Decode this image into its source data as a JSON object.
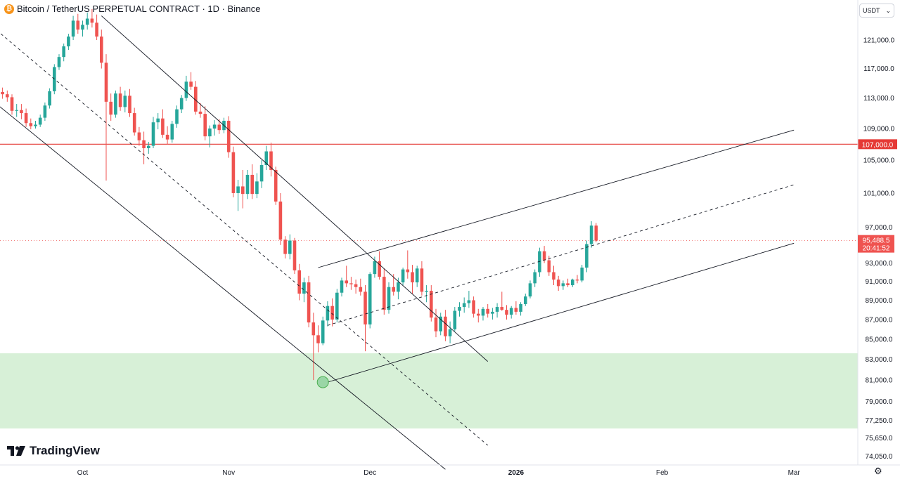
{
  "header": {
    "symbol": "Bitcoin / TetherUS PERPETUAL CONTRACT · 1D · Binance",
    "coin_icon": "bitcoin-icon"
  },
  "currency": {
    "label": "USDT",
    "icon": "chevron-down-icon"
  },
  "logo": {
    "text": "TradingView",
    "icon": "tradingview-logo-icon"
  },
  "settings_icon": "gear-icon",
  "colors": {
    "up": "#26a69a",
    "down": "#ef5350",
    "resistance": "#e53935",
    "zone": "#d7f0d7",
    "line": "#131722"
  },
  "chart_data": {
    "type": "candlestick",
    "symbol": "BTCUSDT.P",
    "interval": "1D",
    "exchange": "Binance",
    "y_scale": "log",
    "x_tick_labels": [
      "Oct",
      "Nov",
      "Dec",
      "2026",
      "Feb",
      "Mar"
    ],
    "x_ticks": [
      {
        "label": "Oct",
        "date": "2025-10-01"
      },
      {
        "label": "Nov",
        "date": "2025-11-01"
      },
      {
        "label": "Dec",
        "date": "2025-12-01"
      },
      {
        "label": "2026",
        "date": "2026-01-01"
      },
      {
        "label": "Feb",
        "date": "2026-02-01"
      },
      {
        "label": "Mar",
        "date": "2026-03-01"
      }
    ],
    "y_tick_labels": [
      "121,000.0",
      "117,000.0",
      "113,000.0",
      "109,000.0",
      "105,000.0",
      "101,000.0",
      "97,000.0",
      "93,000.0",
      "91,000.0",
      "89,000.0",
      "87,000.0",
      "85,000.0",
      "83,000.0",
      "81,000.0",
      "79,000.0",
      "77,250.0",
      "75,650.0",
      "74,050.0"
    ],
    "y_ticks": [
      121000,
      117000,
      113000,
      109000,
      105000,
      101000,
      97000,
      93000,
      91000,
      89000,
      87000,
      85000,
      83000,
      81000,
      79000,
      77250,
      75650,
      74050
    ],
    "first_candle_date": "2025-09-10",
    "candles": [
      [
        113000,
        114500,
        112500,
        113200
      ],
      [
        113200,
        114800,
        112800,
        113500
      ],
      [
        113500,
        115000,
        113000,
        114200
      ],
      [
        114200,
        115200,
        113500,
        113800
      ],
      [
        113800,
        114400,
        112900,
        113500
      ],
      [
        113500,
        114000,
        112500,
        113100
      ],
      [
        113100,
        113500,
        110800,
        111300
      ],
      [
        111300,
        112200,
        110500,
        111400
      ],
      [
        111400,
        112200,
        110200,
        111000
      ],
      [
        111000,
        111600,
        109200,
        109700
      ],
      [
        109700,
        110300,
        108900,
        109300
      ],
      [
        109300,
        110000,
        109000,
        109500
      ],
      [
        109500,
        110800,
        109200,
        110400
      ],
      [
        110400,
        112400,
        110000,
        112000
      ],
      [
        112000,
        114300,
        111600,
        113900
      ],
      [
        113900,
        117600,
        113500,
        117200
      ],
      [
        117200,
        119000,
        116800,
        118600
      ],
      [
        118600,
        120500,
        118000,
        120100
      ],
      [
        120100,
        121900,
        119600,
        121500
      ],
      [
        121500,
        124500,
        121000,
        123800
      ],
      [
        123800,
        124800,
        121900,
        122500
      ],
      [
        122500,
        123800,
        121500,
        123200
      ],
      [
        123200,
        125000,
        122500,
        124100
      ],
      [
        124100,
        125500,
        122800,
        123500
      ],
      [
        123500,
        124700,
        121000,
        121500
      ],
      [
        121500,
        122500,
        117000,
        117800
      ],
      [
        117800,
        119000,
        102500,
        112500
      ],
      [
        112500,
        113600,
        110000,
        110800
      ],
      [
        110800,
        114000,
        110400,
        113600
      ],
      [
        113600,
        114500,
        111300,
        111800
      ],
      [
        111800,
        114000,
        111100,
        113300
      ],
      [
        113300,
        114200,
        110500,
        111000
      ],
      [
        111000,
        111700,
        108100,
        108500
      ],
      [
        108500,
        109200,
        106800,
        107500
      ],
      [
        107500,
        108600,
        104500,
        106500
      ],
      [
        106500,
        107300,
        105800,
        106800
      ],
      [
        106800,
        110500,
        106500,
        109800
      ],
      [
        109800,
        111000,
        108900,
        110300
      ],
      [
        110300,
        111500,
        107800,
        108200
      ],
      [
        108200,
        109300,
        107000,
        107600
      ],
      [
        107600,
        110000,
        107200,
        109600
      ],
      [
        109600,
        112000,
        109100,
        111500
      ],
      [
        111500,
        113400,
        111000,
        113000
      ],
      [
        113000,
        116000,
        112600,
        115200
      ],
      [
        115200,
        116500,
        114100,
        114500
      ],
      [
        114500,
        115300,
        110800,
        111200
      ],
      [
        111200,
        112300,
        110400,
        110900
      ],
      [
        110900,
        111900,
        107500,
        108000
      ],
      [
        108000,
        109400,
        106600,
        109000
      ],
      [
        109000,
        110100,
        108100,
        109500
      ],
      [
        109500,
        110200,
        108300,
        108800
      ],
      [
        108800,
        110400,
        108400,
        110000
      ],
      [
        110000,
        110600,
        105300,
        106000
      ],
      [
        106000,
        106700,
        100500,
        101000
      ],
      [
        101000,
        102600,
        98900,
        101800
      ],
      [
        101800,
        103800,
        99200,
        100900
      ],
      [
        100900,
        103800,
        100300,
        103200
      ],
      [
        103200,
        104500,
        100300,
        100900
      ],
      [
        100900,
        103400,
        100400,
        102400
      ],
      [
        102400,
        105000,
        101600,
        104400
      ],
      [
        104400,
        106800,
        103800,
        106100
      ],
      [
        106100,
        107200,
        103000,
        103800
      ],
      [
        103800,
        104200,
        99600,
        100000
      ],
      [
        100000,
        101000,
        95000,
        95600
      ],
      [
        95600,
        96000,
        93500,
        94000
      ],
      [
        94000,
        96200,
        93400,
        95500
      ],
      [
        95500,
        95800,
        91800,
        92200
      ],
      [
        92200,
        92900,
        89000,
        89700
      ],
      [
        89700,
        91400,
        88800,
        90900
      ],
      [
        90900,
        91600,
        86200,
        86700
      ],
      [
        86700,
        87700,
        81000,
        85400
      ],
      [
        85400,
        86400,
        83700,
        84600
      ],
      [
        84600,
        87300,
        84400,
        86900
      ],
      [
        86900,
        88900,
        86300,
        88400
      ],
      [
        88400,
        89200,
        86300,
        87000
      ],
      [
        87000,
        90200,
        86700,
        89800
      ],
      [
        89800,
        91400,
        89400,
        91100
      ],
      [
        91100,
        92700,
        90400,
        90800
      ],
      [
        90800,
        91500,
        90100,
        90700
      ],
      [
        90700,
        91200,
        89700,
        90400
      ],
      [
        90400,
        91300,
        89500,
        89900
      ],
      [
        89900,
        90600,
        83800,
        86500
      ],
      [
        86500,
        92000,
        86100,
        91800
      ],
      [
        91800,
        93700,
        91400,
        93200
      ],
      [
        93200,
        94300,
        91200,
        91500
      ],
      [
        91500,
        92400,
        87500,
        88000
      ],
      [
        88000,
        90900,
        87600,
        90400
      ],
      [
        90400,
        91800,
        89500,
        89900
      ],
      [
        89900,
        91400,
        89100,
        90900
      ],
      [
        90900,
        92500,
        90600,
        92300
      ],
      [
        92300,
        94400,
        91300,
        92000
      ],
      [
        92000,
        92800,
        89700,
        90900
      ],
      [
        90900,
        92700,
        90400,
        92400
      ],
      [
        92400,
        93200,
        89500,
        89900
      ],
      [
        89900,
        90600,
        88800,
        90000
      ],
      [
        90000,
        90600,
        86800,
        87200
      ],
      [
        87200,
        88100,
        85200,
        85800
      ],
      [
        85800,
        87700,
        85400,
        87300
      ],
      [
        87300,
        88000,
        84800,
        85300
      ],
      [
        85300,
        86800,
        84600,
        86000
      ],
      [
        86000,
        88300,
        85800,
        87900
      ],
      [
        87900,
        88800,
        87300,
        88300
      ],
      [
        88300,
        89300,
        87700,
        88700
      ],
      [
        88700,
        90000,
        88200,
        89000
      ],
      [
        89000,
        89400,
        87200,
        87600
      ],
      [
        87600,
        88100,
        86700,
        87400
      ],
      [
        87400,
        88300,
        86900,
        88100
      ],
      [
        88100,
        88600,
        87200,
        87600
      ],
      [
        87600,
        88200,
        87000,
        87800
      ],
      [
        87800,
        88700,
        87200,
        88300
      ],
      [
        88300,
        89900,
        87900,
        88000
      ],
      [
        88000,
        88500,
        87000,
        87500
      ],
      [
        87500,
        88400,
        87100,
        88200
      ],
      [
        88200,
        88900,
        87500,
        87800
      ],
      [
        87800,
        88800,
        87400,
        88600
      ],
      [
        88600,
        89700,
        88400,
        89400
      ],
      [
        89400,
        91100,
        89200,
        90800
      ],
      [
        90800,
        92300,
        90400,
        92000
      ],
      [
        92000,
        94700,
        91500,
        94300
      ],
      [
        94300,
        94900,
        93000,
        93300
      ],
      [
        93300,
        93800,
        91600,
        92000
      ],
      [
        92000,
        92700,
        90600,
        91200
      ],
      [
        91200,
        91600,
        90000,
        90500
      ],
      [
        90500,
        91100,
        90100,
        90800
      ],
      [
        90800,
        91300,
        90400,
        90600
      ],
      [
        90600,
        91300,
        90400,
        91200
      ],
      [
        91200,
        91700,
        90800,
        91100
      ],
      [
        91100,
        92800,
        90900,
        92500
      ],
      [
        92500,
        95500,
        92000,
        95100
      ],
      [
        95100,
        97700,
        94700,
        97200
      ],
      [
        97200,
        97500,
        95300,
        95488.5
      ]
    ],
    "current_price": 95488.5,
    "current_price_label": "95,488.5",
    "countdown_label": "20:41:52",
    "annotations": [
      {
        "type": "horizontal_line",
        "name": "resistance",
        "price": 107000,
        "label": "107,000.0"
      },
      {
        "type": "zone",
        "name": "demand-zone",
        "from": 76500,
        "to": 83600
      },
      {
        "type": "trend_line",
        "name": "descending-channel-upper",
        "points": [
          [
            "2025-10-05",
            124500
          ],
          [
            "2025-12-26",
            82800
          ]
        ]
      },
      {
        "type": "trend_line",
        "name": "descending-channel-mid",
        "style": "dashed",
        "points": [
          [
            "2025-09-10",
            124000
          ],
          [
            "2025-12-26",
            75000
          ]
        ]
      },
      {
        "type": "trend_line",
        "name": "descending-channel-lower",
        "points": [
          [
            "2025-09-10",
            113600
          ],
          [
            "2025-12-17",
            72900
          ]
        ]
      },
      {
        "type": "trend_line",
        "name": "ascending-channel-upper",
        "points": [
          [
            "2025-11-20",
            92500
          ],
          [
            "2026-03-01",
            108800
          ]
        ]
      },
      {
        "type": "trend_line",
        "name": "ascending-channel-mid",
        "style": "dashed",
        "points": [
          [
            "2025-11-22",
            86400
          ],
          [
            "2026-03-01",
            102000
          ]
        ]
      },
      {
        "type": "trend_line",
        "name": "ascending-channel-lower",
        "points": [
          [
            "2025-11-22",
            80800
          ],
          [
            "2026-03-01",
            95200
          ]
        ]
      },
      {
        "type": "marker",
        "name": "swing-low-marker",
        "date": "2025-11-21",
        "price": 80800
      }
    ]
  }
}
